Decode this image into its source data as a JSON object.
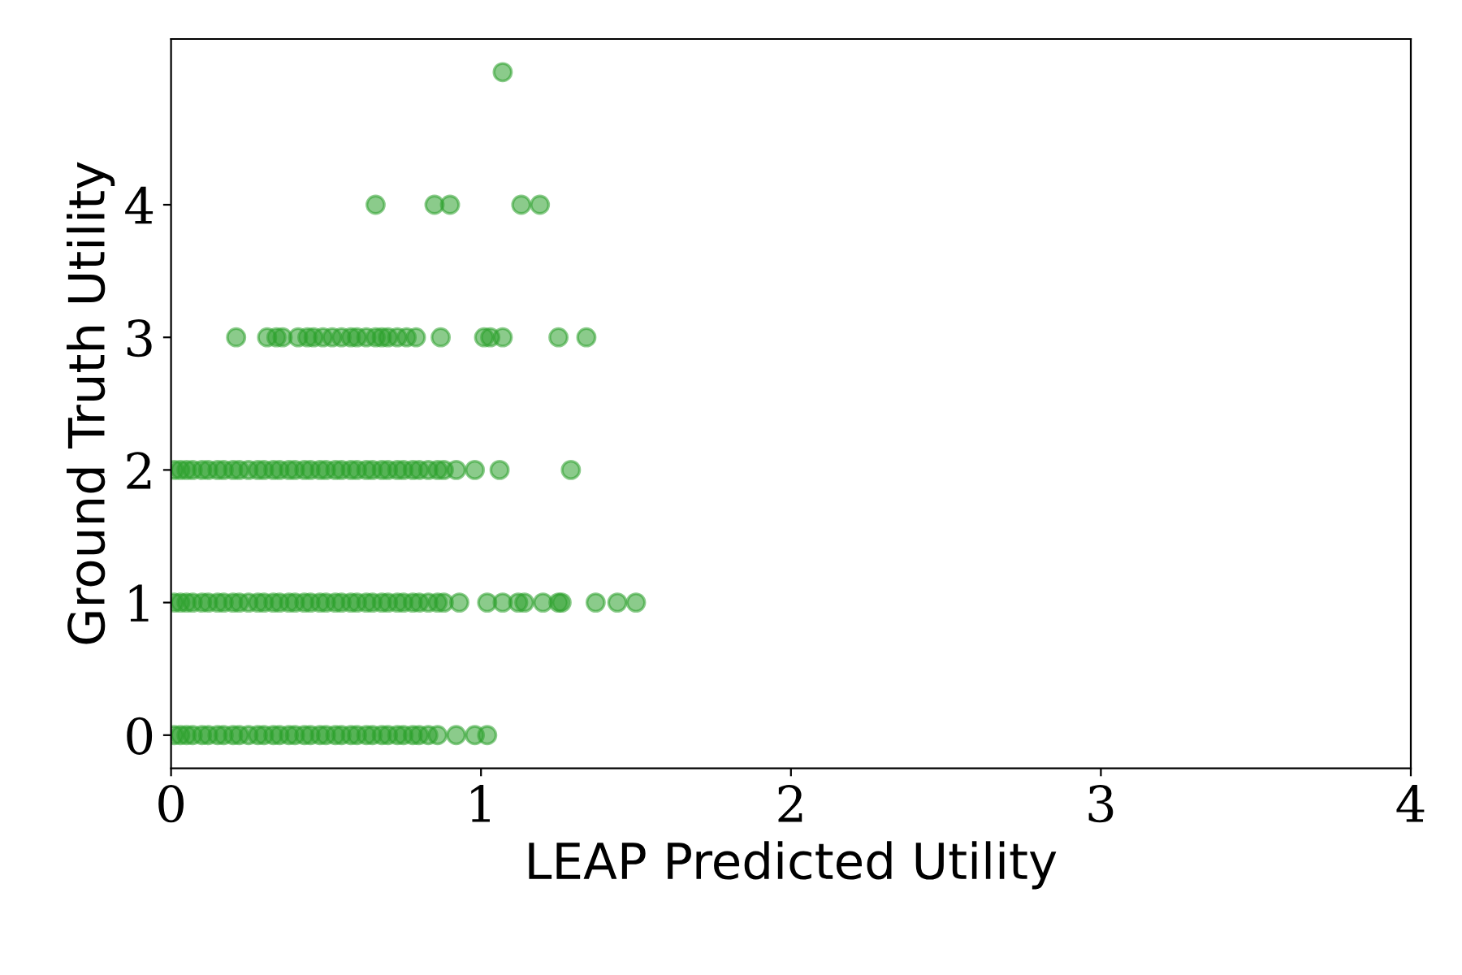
{
  "chart_data": {
    "type": "scatter",
    "xlabel": "LEAP Predicted Utility",
    "ylabel": "Ground Truth Utility",
    "xlim": [
      0,
      4
    ],
    "xticks": [
      0,
      1,
      2,
      3,
      4
    ],
    "ylim": [
      -0.25,
      5.25
    ],
    "yticks": [
      0,
      1,
      2,
      3,
      4
    ],
    "marker": "circle",
    "grid": false,
    "series": [
      {
        "color": "#2ca02c",
        "x": [
          0.01,
          0.03,
          0.05,
          0.07,
          0.1,
          0.12,
          0.15,
          0.17,
          0.2,
          0.22,
          0.25,
          0.28,
          0.3,
          0.33,
          0.35,
          0.38,
          0.4,
          0.43,
          0.45,
          0.48,
          0.5,
          0.53,
          0.55,
          0.58,
          0.6,
          0.63,
          0.65,
          0.68,
          0.7,
          0.73,
          0.75,
          0.78,
          0.8,
          0.83,
          0.86,
          0.92,
          0.98,
          1.02,
          0.01,
          0.03,
          0.05,
          0.07,
          0.1,
          0.12,
          0.15,
          0.17,
          0.2,
          0.22,
          0.25,
          0.28,
          0.3,
          0.33,
          0.35,
          0.38,
          0.4,
          0.43,
          0.45,
          0.48,
          0.5,
          0.53,
          0.55,
          0.58,
          0.6,
          0.63,
          0.65,
          0.68,
          0.7,
          0.73,
          0.75,
          0.78,
          0.8,
          0.83,
          0.86,
          0.88,
          0.93,
          1.02,
          1.07,
          1.12,
          1.14,
          1.2,
          1.25,
          1.26,
          1.37,
          1.44,
          1.5,
          0.01,
          0.03,
          0.05,
          0.07,
          0.1,
          0.12,
          0.15,
          0.17,
          0.2,
          0.22,
          0.25,
          0.28,
          0.3,
          0.33,
          0.35,
          0.38,
          0.4,
          0.43,
          0.45,
          0.48,
          0.5,
          0.53,
          0.55,
          0.58,
          0.6,
          0.63,
          0.65,
          0.68,
          0.7,
          0.73,
          0.75,
          0.78,
          0.8,
          0.83,
          0.86,
          0.88,
          0.92,
          0.98,
          1.06,
          1.29,
          0.21,
          0.31,
          0.34,
          0.36,
          0.41,
          0.44,
          0.46,
          0.49,
          0.52,
          0.55,
          0.58,
          0.6,
          0.63,
          0.66,
          0.68,
          0.7,
          0.73,
          0.76,
          0.79,
          0.87,
          1.01,
          1.03,
          1.07,
          1.25,
          1.34,
          0.66,
          0.85,
          0.9,
          1.13,
          1.19,
          1.07
        ],
        "values": [
          0,
          0,
          0,
          0,
          0,
          0,
          0,
          0,
          0,
          0,
          0,
          0,
          0,
          0,
          0,
          0,
          0,
          0,
          0,
          0,
          0,
          0,
          0,
          0,
          0,
          0,
          0,
          0,
          0,
          0,
          0,
          0,
          0,
          0,
          0,
          0,
          0,
          0,
          1,
          1,
          1,
          1,
          1,
          1,
          1,
          1,
          1,
          1,
          1,
          1,
          1,
          1,
          1,
          1,
          1,
          1,
          1,
          1,
          1,
          1,
          1,
          1,
          1,
          1,
          1,
          1,
          1,
          1,
          1,
          1,
          1,
          1,
          1,
          1,
          1,
          1,
          1,
          1,
          1,
          1,
          1,
          1,
          1,
          1,
          1,
          2,
          2,
          2,
          2,
          2,
          2,
          2,
          2,
          2,
          2,
          2,
          2,
          2,
          2,
          2,
          2,
          2,
          2,
          2,
          2,
          2,
          2,
          2,
          2,
          2,
          2,
          2,
          2,
          2,
          2,
          2,
          2,
          2,
          2,
          2,
          2,
          2,
          2,
          2,
          2,
          3,
          3,
          3,
          3,
          3,
          3,
          3,
          3,
          3,
          3,
          3,
          3,
          3,
          3,
          3,
          3,
          3,
          3,
          3,
          3,
          3,
          3,
          3,
          3,
          3,
          4,
          4,
          4,
          4,
          4,
          5
        ]
      }
    ]
  }
}
